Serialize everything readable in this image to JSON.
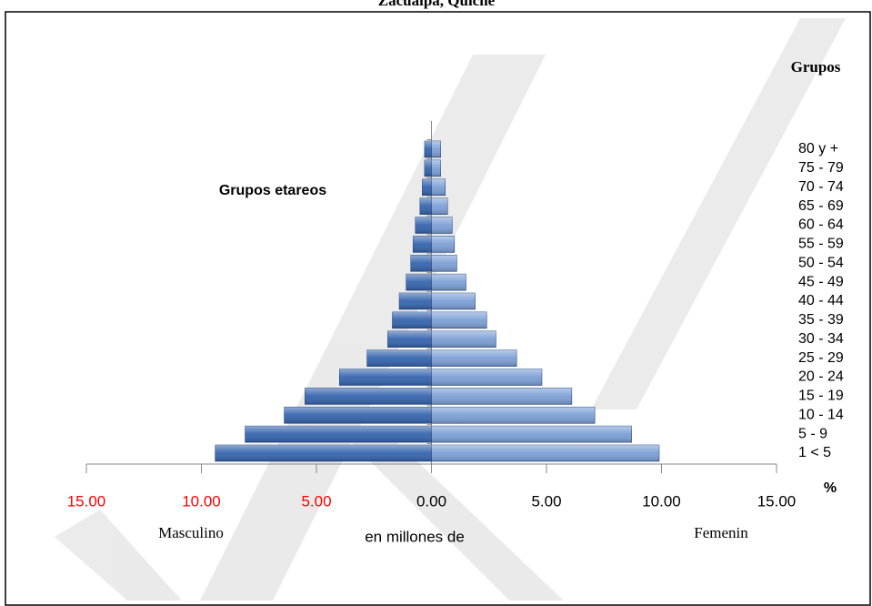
{
  "chart_data": {
    "type": "pyramid",
    "title": "Zacualpa, Quiche",
    "legend_title": "Grupos",
    "ylabel": "Grupos etareos",
    "xlabel": "en millones de",
    "unit_label": "%",
    "categories": [
      "1 < 5",
      "5 - 9",
      "10 - 14",
      "15 - 19",
      "20 - 24",
      "25 - 29",
      "30 - 34",
      "35 - 39",
      "40 - 44",
      "45 - 49",
      "50 - 54",
      "55 - 59",
      "60 - 64",
      "65 - 69",
      "70 - 74",
      "75 - 79",
      "80 y +"
    ],
    "series": [
      {
        "name": "Masculino",
        "color": "#3564ad",
        "values": [
          -9.4,
          -8.1,
          -6.4,
          -5.5,
          -4.0,
          -2.8,
          -1.9,
          -1.7,
          -1.4,
          -1.1,
          -0.9,
          -0.8,
          -0.7,
          -0.5,
          -0.4,
          -0.3,
          -0.3
        ]
      },
      {
        "name": "Femenin",
        "color": "#7c9fd6",
        "values": [
          9.9,
          8.7,
          7.1,
          6.1,
          4.8,
          3.7,
          2.8,
          2.4,
          1.9,
          1.5,
          1.1,
          1.0,
          0.9,
          0.7,
          0.6,
          0.4,
          0.4
        ]
      }
    ],
    "xlim": [
      -15,
      15
    ],
    "xticks": [
      {
        "value": -15,
        "label": "15.00"
      },
      {
        "value": -10,
        "label": "10.00"
      },
      {
        "value": -5,
        "label": "5.00"
      },
      {
        "value": 0,
        "label": "0.00"
      },
      {
        "value": 5,
        "label": "5.00"
      },
      {
        "value": 10,
        "label": "10.00"
      },
      {
        "value": 15,
        "label": "15.00"
      }
    ]
  }
}
